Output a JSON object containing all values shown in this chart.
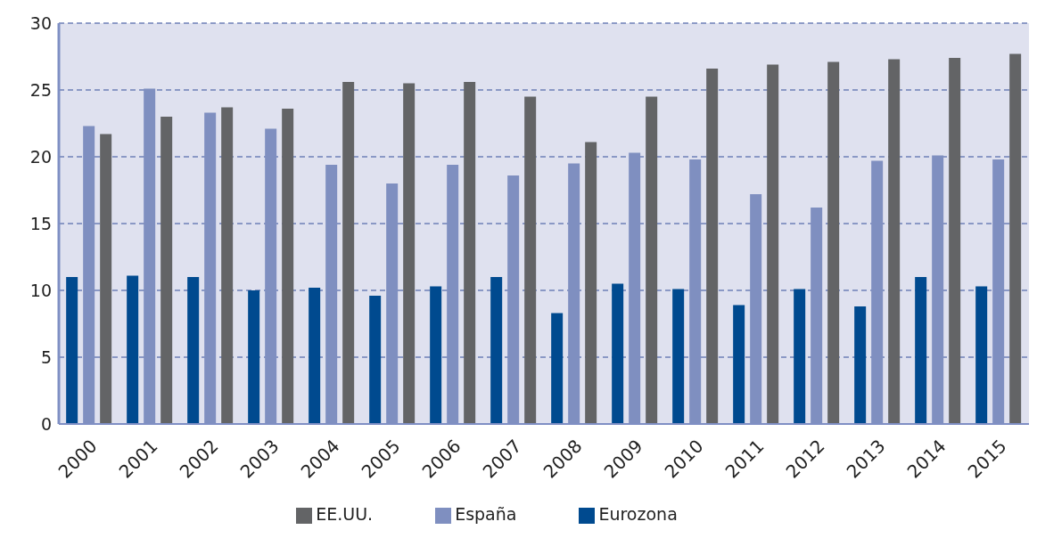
{
  "chart_data": {
    "type": "bar",
    "categories": [
      "2000",
      "2001",
      "2002",
      "2003",
      "2004",
      "2005",
      "2006",
      "2007",
      "2008",
      "2009",
      "2010",
      "2011",
      "2012",
      "2013",
      "2014",
      "2015"
    ],
    "series": [
      {
        "name": "Eurozona",
        "color": "#004a8f",
        "values": [
          11.0,
          11.1,
          11.0,
          10.0,
          10.2,
          9.6,
          10.3,
          11.0,
          8.3,
          10.5,
          10.1,
          8.9,
          10.1,
          8.8,
          11.0,
          10.3
        ]
      },
      {
        "name": "España",
        "color": "#7f8fc0",
        "values": [
          22.3,
          25.1,
          23.3,
          22.1,
          19.4,
          18.0,
          19.4,
          18.6,
          19.5,
          20.3,
          19.8,
          17.2,
          16.2,
          19.7,
          20.1,
          19.8
        ]
      },
      {
        "name": "EE.UU.",
        "color": "#636466",
        "values": [
          21.7,
          23.0,
          23.7,
          23.6,
          25.6,
          25.5,
          25.6,
          24.5,
          21.1,
          24.5,
          26.6,
          26.9,
          27.1,
          27.3,
          27.4,
          27.7
        ]
      }
    ],
    "ylim": [
      0,
      30
    ],
    "yticks": [
      0,
      5,
      10,
      15,
      20,
      25,
      30
    ],
    "grid": "y",
    "legend": "bottom"
  }
}
